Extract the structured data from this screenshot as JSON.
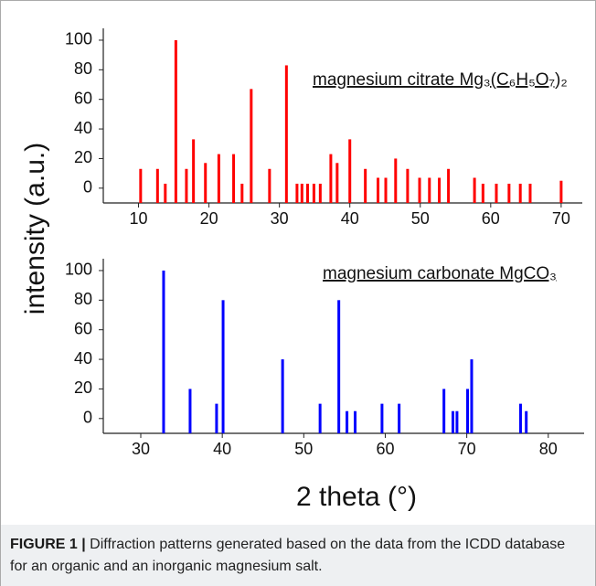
{
  "chart_data": [
    {
      "type": "bar",
      "color": "#ff0000",
      "annotation": "magnesium citrate Mg₃(C₆H₅O₇)₂",
      "ylabel": "intensity (a.u.)",
      "x": [
        10.3,
        12.7,
        13.8,
        15.3,
        16.8,
        17.8,
        19.5,
        21.4,
        23.5,
        24.7,
        26.0,
        28.6,
        31.0,
        32.5,
        33.2,
        34.0,
        34.9,
        35.8,
        37.3,
        38.2,
        40.0,
        42.2,
        44.0,
        45.1,
        46.5,
        48.2,
        49.9,
        51.3,
        52.7,
        54.0,
        57.7,
        58.9,
        60.8,
        62.6,
        64.2,
        65.6,
        70.0
      ],
      "values": [
        13,
        13,
        3,
        100,
        13,
        33,
        17,
        23,
        23,
        3,
        67,
        13,
        83,
        3,
        3,
        3,
        3,
        3,
        23,
        17,
        33,
        13,
        7,
        7,
        20,
        13,
        7,
        7,
        7,
        13,
        7,
        3,
        3,
        3,
        3,
        3,
        5
      ],
      "xlim": [
        5,
        73
      ],
      "xticks": [
        10,
        20,
        30,
        40,
        50,
        60,
        70
      ],
      "ylim": [
        -10,
        108
      ],
      "yticks": [
        0,
        20,
        40,
        60,
        80,
        100
      ]
    },
    {
      "type": "bar",
      "color": "#0000ff",
      "annotation": "magnesium carbonate MgCO₃",
      "xlabel": "2 theta (°)",
      "x": [
        32.8,
        36.05,
        39.3,
        40.1,
        47.4,
        52.0,
        54.3,
        55.3,
        56.3,
        59.6,
        61.7,
        67.2,
        68.3,
        68.8,
        70.1,
        70.6,
        76.6,
        77.3
      ],
      "values": [
        100,
        20,
        10,
        80,
        40,
        10,
        80,
        5,
        5,
        10,
        10,
        20,
        5,
        5,
        20,
        40,
        10,
        5
      ],
      "xlim": [
        25.4,
        84.4
      ],
      "xticks": [
        30,
        40,
        50,
        60,
        70,
        80
      ],
      "ylim": [
        -10,
        108
      ],
      "yticks": [
        0,
        20,
        40,
        60,
        80,
        100
      ]
    }
  ],
  "caption": {
    "label": "FIGURE 1 |",
    "text": "Diffraction patterns generated based on the data from the ICDD database for an organic and an inorganic magnesium salt."
  }
}
